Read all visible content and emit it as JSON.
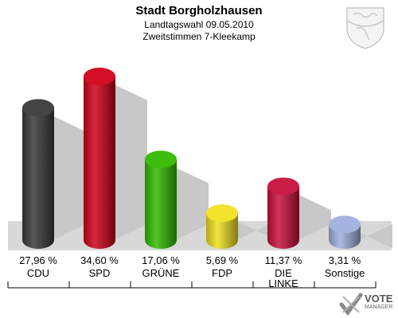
{
  "header": {
    "title": "Stadt Borgholzhausen",
    "subtitle": "Landtagswahl 09.05.2010",
    "subtitle2": "Zweitstimmen 7-Kleekamp"
  },
  "chart_data": {
    "type": "bar",
    "title": "Stadt Borgholzhausen",
    "xlabel": "",
    "ylabel": "",
    "ylim": [
      0,
      40
    ],
    "grid": false,
    "categories": [
      "CDU",
      "SPD",
      "GRÜNE",
      "FDP",
      "DIE LINKE",
      "Sonstige"
    ],
    "values": [
      27.96,
      34.6,
      17.06,
      5.69,
      11.37,
      3.31
    ],
    "value_labels": [
      "27,96 %",
      "34,60 %",
      "17,06 %",
      "5,69 %",
      "11,37 %",
      "3,31 %"
    ],
    "colors": [
      "#3a3a3a",
      "#d0021b",
      "#33bb00",
      "#f0e020",
      "#c8103c",
      "#a0b0dd"
    ]
  },
  "logo": {
    "main": "VOTE",
    "sub": "MANAGER"
  }
}
